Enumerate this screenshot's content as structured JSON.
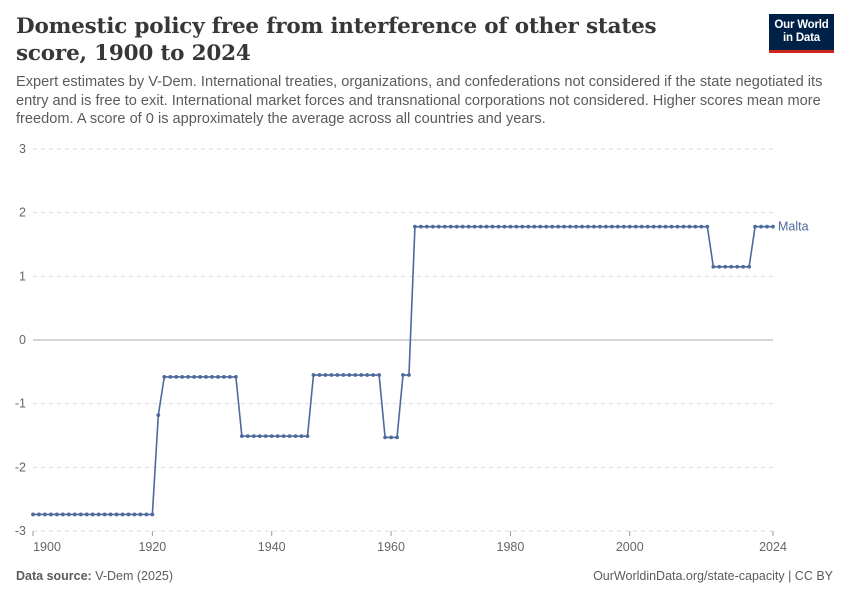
{
  "header": {
    "title": "Domestic policy free from interference of other states score, 1900 to 2024",
    "subtitle": "Expert estimates by V-Dem. International treaties, organizations, and confederations not considered if the state negotiated its entry and is free to exit. International market forces and transnational corporations not considered. Higher scores mean more freedom. A score of 0 is approximately the average across all countries and years."
  },
  "logo": {
    "line1": "Our World",
    "line2": "in Data"
  },
  "footer": {
    "source_label": "Data source:",
    "source_value": "V-Dem (2025)",
    "url": "OurWorldinData.org/state-capacity | CC BY"
  },
  "colors": {
    "series": "#4c6a9c",
    "grid": "#dddddd",
    "zero_line": "#aaaaaa",
    "logo_bg": "#002147",
    "logo_accent": "#ce261e"
  },
  "chart_data": {
    "type": "line",
    "title": "Domestic policy free from interference of other states score, 1900 to 2024",
    "xlim": [
      1900,
      2024
    ],
    "ylim": [
      -3,
      3
    ],
    "x_ticks": [
      {
        "value": 1900,
        "label": "1900"
      },
      {
        "value": 1920,
        "label": "1920"
      },
      {
        "value": 1940,
        "label": "1940"
      },
      {
        "value": 1960,
        "label": "1960"
      },
      {
        "value": 1980,
        "label": "1980"
      },
      {
        "value": 2000,
        "label": "2000"
      },
      {
        "value": 2024,
        "label": "2024"
      }
    ],
    "y_ticks": [
      {
        "value": 3,
        "label": "3"
      },
      {
        "value": 2,
        "label": "2"
      },
      {
        "value": 1,
        "label": "1"
      },
      {
        "value": 0,
        "label": "0"
      },
      {
        "value": -1,
        "label": "-1"
      },
      {
        "value": -2,
        "label": "-2"
      },
      {
        "value": -3,
        "label": "-3"
      }
    ],
    "grid": "horizontal dashed",
    "series": [
      {
        "name": "Malta",
        "color": "#4c6a9c",
        "segments": [
          {
            "from": 1900,
            "to": 1920,
            "value": -2.74
          },
          {
            "from": 1921,
            "to": 1921,
            "value": -1.18
          },
          {
            "from": 1922,
            "to": 1934,
            "value": -0.58
          },
          {
            "from": 1935,
            "to": 1946,
            "value": -1.51
          },
          {
            "from": 1947,
            "to": 1958,
            "value": -0.55
          },
          {
            "from": 1959,
            "to": 1961,
            "value": -1.53
          },
          {
            "from": 1962,
            "to": 1963,
            "value": -0.55
          },
          {
            "from": 1964,
            "to": 2013,
            "value": 1.78
          },
          {
            "from": 2014,
            "to": 2020,
            "value": 1.15
          },
          {
            "from": 2021,
            "to": 2024,
            "value": 1.78
          }
        ]
      }
    ]
  }
}
